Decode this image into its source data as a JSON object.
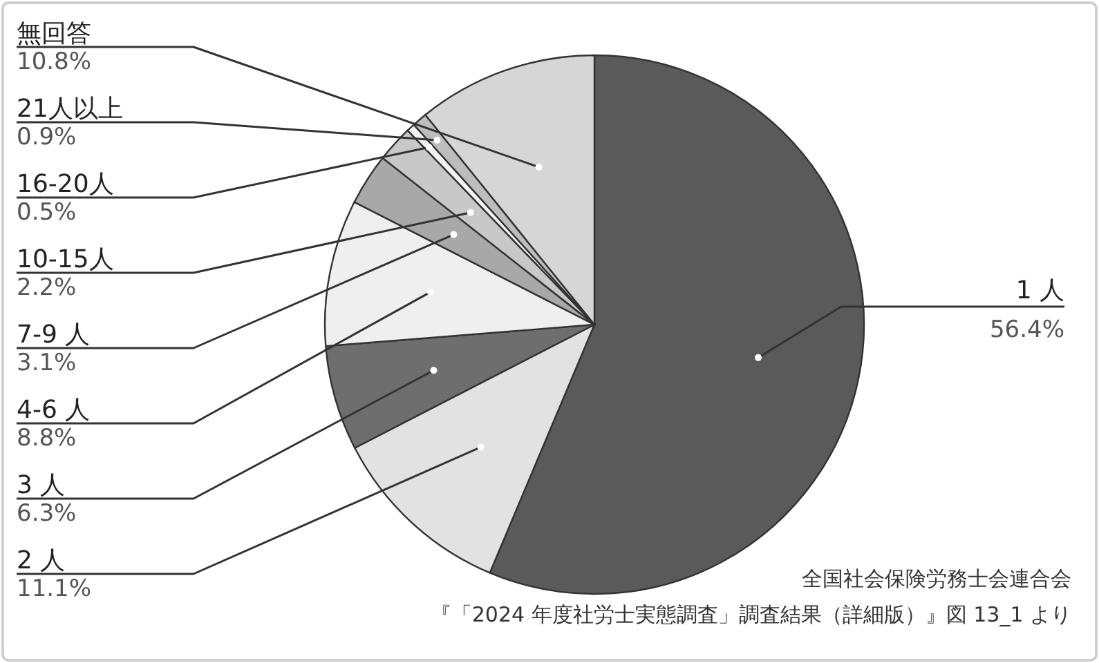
{
  "chart_data": {
    "type": "pie",
    "categories": [
      "1 人",
      "2 人",
      "3 人",
      "4-6 人",
      "7-9 人",
      "10-15人",
      "16-20人",
      "21人以上",
      "無回答"
    ],
    "values": [
      56.4,
      11.1,
      6.3,
      8.8,
      3.1,
      2.2,
      0.5,
      0.9,
      10.8
    ],
    "value_labels": [
      "56.4%",
      "11.1%",
      "6.3%",
      "8.8%",
      "3.1%",
      "2.2%",
      "0.5%",
      "0.9%",
      "10.8%"
    ],
    "colors": [
      "#5a5a5a",
      "#e2e2e2",
      "#6e6e6e",
      "#efefef",
      "#a8a8a8",
      "#c8c8c8",
      "#f4f4f4",
      "#bdbdbd",
      "#d6d6d6"
    ],
    "annotations": [
      "全国社会保険労務士会連合会",
      "『「2024 年度社労士実態調査」調査結果（詳細版）』図 13_1 より"
    ]
  }
}
